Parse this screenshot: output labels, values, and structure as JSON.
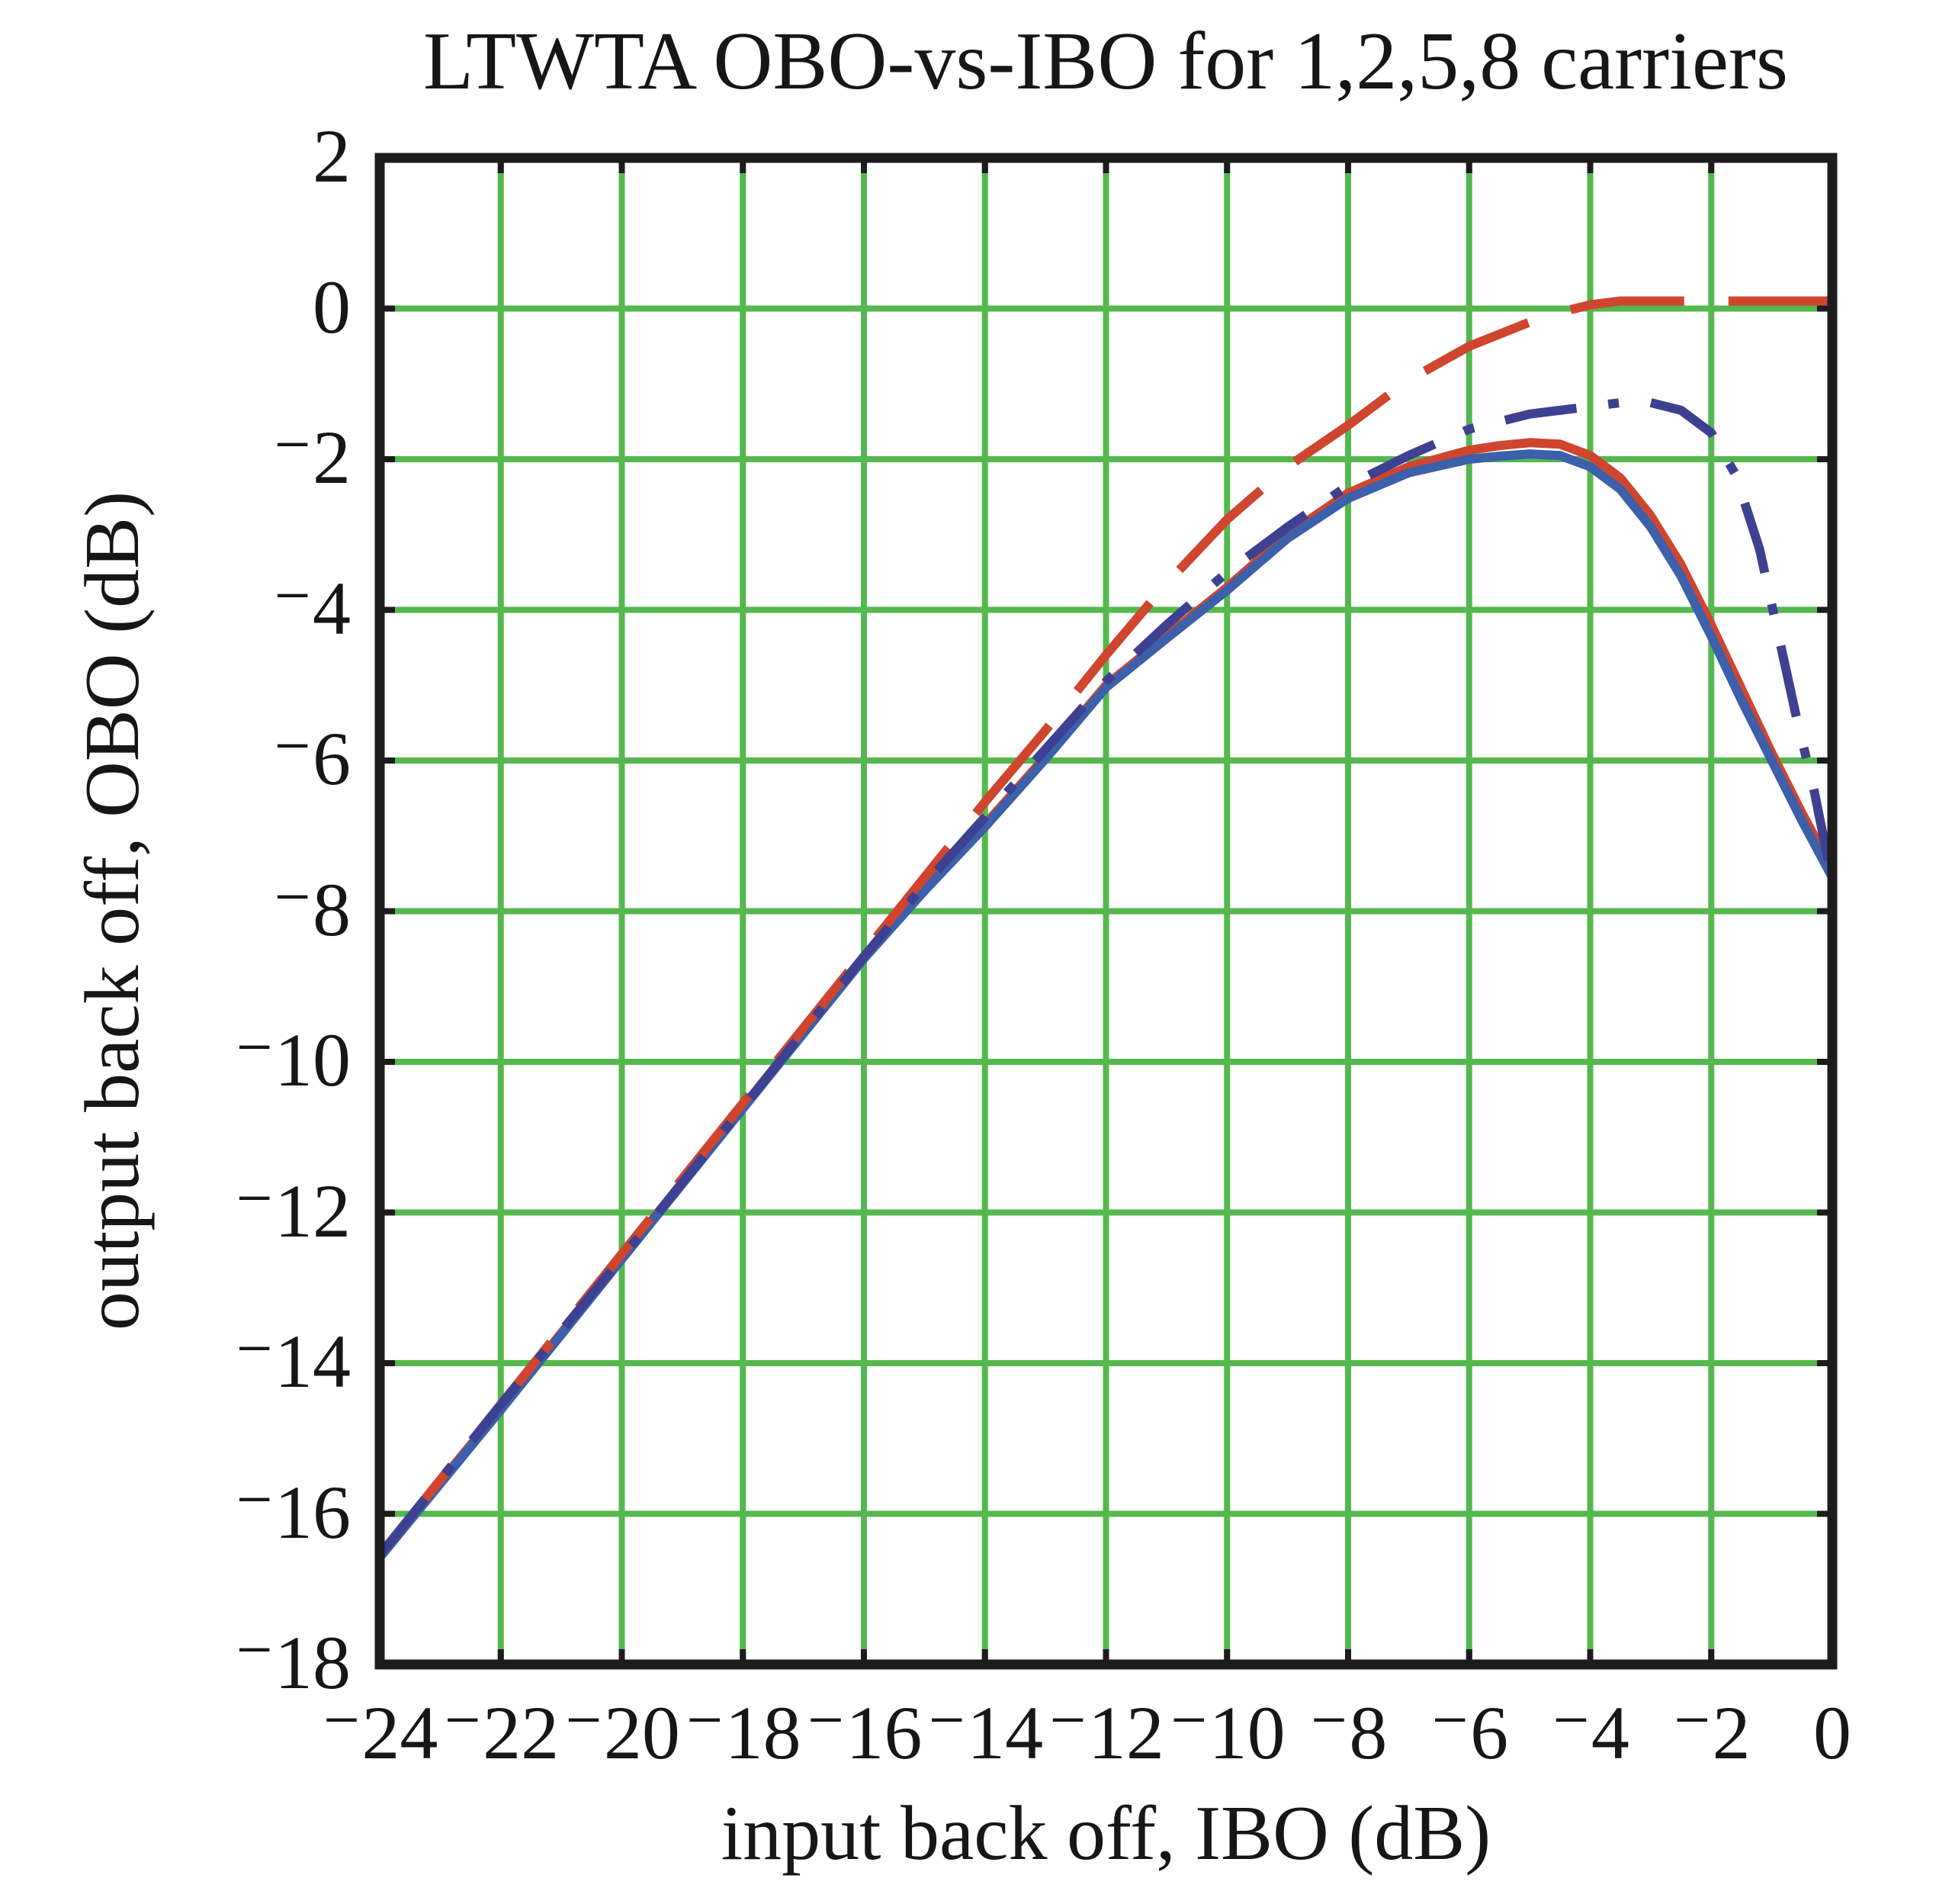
{
  "chart_data": {
    "type": "line",
    "title": "LTWTA OBO-vs-IBO for 1,2,5,8 carriers",
    "xlabel": "input back off, IBO (dB)",
    "ylabel": "output back off, OBO (dB)",
    "xlim": [
      -24,
      0
    ],
    "ylim": [
      -18,
      2
    ],
    "xticks": [
      -24,
      -22,
      -20,
      -18,
      -16,
      -14,
      -12,
      -10,
      -8,
      -6,
      -4,
      -2,
      0
    ],
    "xtick_labels": [
      "⁻24",
      "⁻22",
      "⁻20",
      "⁻18",
      "⁻16",
      "⁻14",
      "⁻12",
      "⁻10",
      "⁻8",
      "⁻6",
      "⁻4",
      "⁻2",
      "0"
    ],
    "yticks": [
      2,
      0,
      -2,
      -4,
      -6,
      -8,
      -10,
      -12,
      -14,
      -16,
      -18
    ],
    "ytick_labels": [
      "2",
      "0",
      "⁻2",
      "⁻4",
      "⁻6",
      "⁻8",
      "⁻10",
      "⁻12",
      "⁻14",
      "⁻16",
      "⁻18"
    ],
    "grid": true,
    "legend": "none",
    "colors": {
      "background": "#ffffff",
      "grid_green": "#55b84e",
      "frame_black": "#1c1c1c",
      "carrier_red": "#d0452e",
      "dash_dot_indigo": "#3e4191",
      "solid_blue": "#3c60aa"
    },
    "series": [
      {
        "name": "1 carrier",
        "line_style": "dashed",
        "color": "#d0452e",
        "points": [
          [
            -24,
            -16.55
          ],
          [
            -22,
            -14.55
          ],
          [
            -20,
            -12.55
          ],
          [
            -18,
            -10.55
          ],
          [
            -16,
            -8.55
          ],
          [
            -15,
            -7.55
          ],
          [
            -14,
            -6.55
          ],
          [
            -13,
            -5.6
          ],
          [
            -12,
            -4.6
          ],
          [
            -11,
            -3.65
          ],
          [
            -10,
            -2.8
          ],
          [
            -9,
            -2.1
          ],
          [
            -8,
            -1.55
          ],
          [
            -7,
            -0.95
          ],
          [
            -6,
            -0.5
          ],
          [
            -5,
            -0.18
          ],
          [
            -4.5,
            -0.05
          ],
          [
            -4,
            0.05
          ],
          [
            -3.5,
            0.1
          ],
          [
            -3,
            0.1
          ],
          [
            -2,
            0.1
          ],
          [
            -1,
            0.1
          ],
          [
            0,
            0.1
          ]
        ]
      },
      {
        "name": "2 carriers",
        "line_style": "dash-dot",
        "color": "#3e4191",
        "points": [
          [
            -24,
            -16.55
          ],
          [
            -22,
            -14.55
          ],
          [
            -20,
            -12.6
          ],
          [
            -18,
            -10.6
          ],
          [
            -16,
            -8.6
          ],
          [
            -15,
            -7.65
          ],
          [
            -14,
            -6.75
          ],
          [
            -13,
            -5.85
          ],
          [
            -12,
            -4.95
          ],
          [
            -11,
            -4.2
          ],
          [
            -10,
            -3.5
          ],
          [
            -9,
            -2.9
          ],
          [
            -8,
            -2.35
          ],
          [
            -7,
            -1.95
          ],
          [
            -6,
            -1.6
          ],
          [
            -5,
            -1.4
          ],
          [
            -4,
            -1.3
          ],
          [
            -3.5,
            -1.25
          ],
          [
            -3,
            -1.25
          ],
          [
            -2.5,
            -1.35
          ],
          [
            -2,
            -1.65
          ],
          [
            -1.6,
            -2.2
          ],
          [
            -1.2,
            -3.2
          ],
          [
            -0.9,
            -4.3
          ],
          [
            -0.6,
            -5.4
          ],
          [
            -0.3,
            -6.4
          ],
          [
            0,
            -7.6
          ]
        ]
      },
      {
        "name": "5 carriers",
        "line_style": "solid",
        "color": "#d0452e",
        "points": [
          [
            -24,
            -16.55
          ],
          [
            -22,
            -14.6
          ],
          [
            -20,
            -12.6
          ],
          [
            -18,
            -10.6
          ],
          [
            -16,
            -8.6
          ],
          [
            -15,
            -7.7
          ],
          [
            -14,
            -6.85
          ],
          [
            -13,
            -5.95
          ],
          [
            -12,
            -5.0
          ],
          [
            -11,
            -4.35
          ],
          [
            -10,
            -3.7
          ],
          [
            -9,
            -3.0
          ],
          [
            -8,
            -2.45
          ],
          [
            -7,
            -2.1
          ],
          [
            -6,
            -1.88
          ],
          [
            -5.5,
            -1.82
          ],
          [
            -5,
            -1.78
          ],
          [
            -4.5,
            -1.8
          ],
          [
            -4,
            -1.95
          ],
          [
            -3.5,
            -2.25
          ],
          [
            -3,
            -2.75
          ],
          [
            -2.5,
            -3.4
          ],
          [
            -2,
            -4.2
          ],
          [
            -1.5,
            -5.05
          ],
          [
            -1,
            -5.9
          ],
          [
            -0.5,
            -6.7
          ],
          [
            0,
            -7.45
          ]
        ]
      },
      {
        "name": "8 carriers",
        "line_style": "solid",
        "color": "#3c60aa",
        "points": [
          [
            -24,
            -16.58
          ],
          [
            -22,
            -14.62
          ],
          [
            -20,
            -12.62
          ],
          [
            -18,
            -10.62
          ],
          [
            -16,
            -8.63
          ],
          [
            -15,
            -7.73
          ],
          [
            -14,
            -6.88
          ],
          [
            -13,
            -5.98
          ],
          [
            -12,
            -5.03
          ],
          [
            -11,
            -4.38
          ],
          [
            -10,
            -3.74
          ],
          [
            -9,
            -3.05
          ],
          [
            -8,
            -2.52
          ],
          [
            -7,
            -2.18
          ],
          [
            -6,
            -2.0
          ],
          [
            -5.5,
            -1.96
          ],
          [
            -5,
            -1.93
          ],
          [
            -4.5,
            -1.95
          ],
          [
            -4,
            -2.1
          ],
          [
            -3.5,
            -2.4
          ],
          [
            -3,
            -2.9
          ],
          [
            -2.5,
            -3.55
          ],
          [
            -2,
            -4.35
          ],
          [
            -1.5,
            -5.2
          ],
          [
            -1,
            -6.0
          ],
          [
            -0.5,
            -6.8
          ],
          [
            0,
            -7.55
          ]
        ]
      }
    ]
  }
}
